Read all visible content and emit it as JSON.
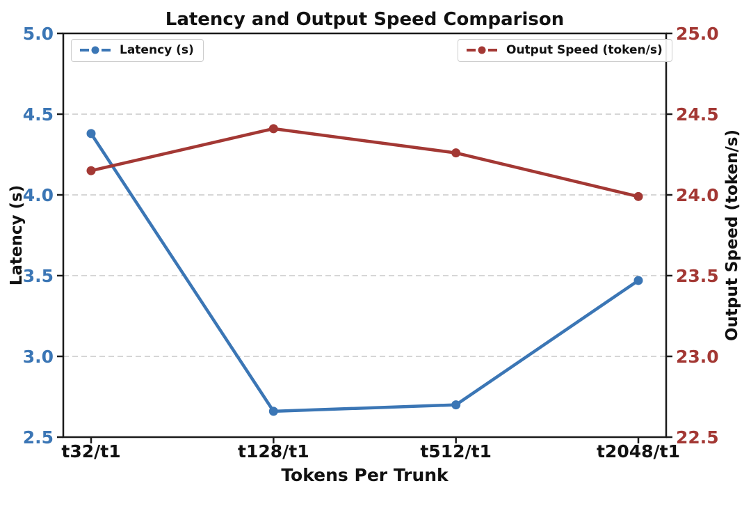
{
  "chart_data": {
    "type": "line",
    "title": "Latency and Output Speed Comparison",
    "xlabel": "Tokens Per Trunk",
    "categories": [
      "t32/t1",
      "t128/t1",
      "t512/t1",
      "t2048/t1"
    ],
    "grid": "horizontal dashed",
    "background_color": "#ffffff",
    "grid_color": "#c9c9c9",
    "spine_color": "#1a1a1a",
    "axes": {
      "left": {
        "label": "Latency (s)",
        "min": 2.5,
        "max": 5.0,
        "tick_color": "#3B76B5",
        "ticks": [
          {
            "label": "5.0",
            "value": 5.0
          },
          {
            "label": "4.5",
            "value": 4.5
          },
          {
            "label": "4.0",
            "value": 4.0
          },
          {
            "label": "3.5",
            "value": 3.5
          },
          {
            "label": "3.0",
            "value": 3.0
          },
          {
            "label": "2.5",
            "value": 2.5
          }
        ]
      },
      "right": {
        "label": "Output Speed (token/s)",
        "min": 22.5,
        "max": 25.0,
        "tick_color": "#A33834",
        "ticks": [
          {
            "label": "25.0",
            "value": 25.0
          },
          {
            "label": "24.5",
            "value": 24.5
          },
          {
            "label": "24.0",
            "value": 24.0
          },
          {
            "label": "23.5",
            "value": 23.5
          },
          {
            "label": "23.0",
            "value": 23.0
          },
          {
            "label": "22.5",
            "value": 22.5
          }
        ]
      }
    },
    "series": [
      {
        "name": "Latency (s)",
        "axis": "left",
        "color": "#3B76B5",
        "marker": "circle",
        "values": [
          4.38,
          2.66,
          2.7,
          3.47
        ]
      },
      {
        "name": "Output Speed (token/s)",
        "axis": "right",
        "color": "#A33834",
        "marker": "circle",
        "values": [
          24.15,
          24.41,
          24.26,
          23.99
        ]
      }
    ],
    "legend": [
      {
        "label": "Latency (s)",
        "position": "upper-left"
      },
      {
        "label": "Output Speed (token/s)",
        "position": "upper-right"
      }
    ]
  }
}
